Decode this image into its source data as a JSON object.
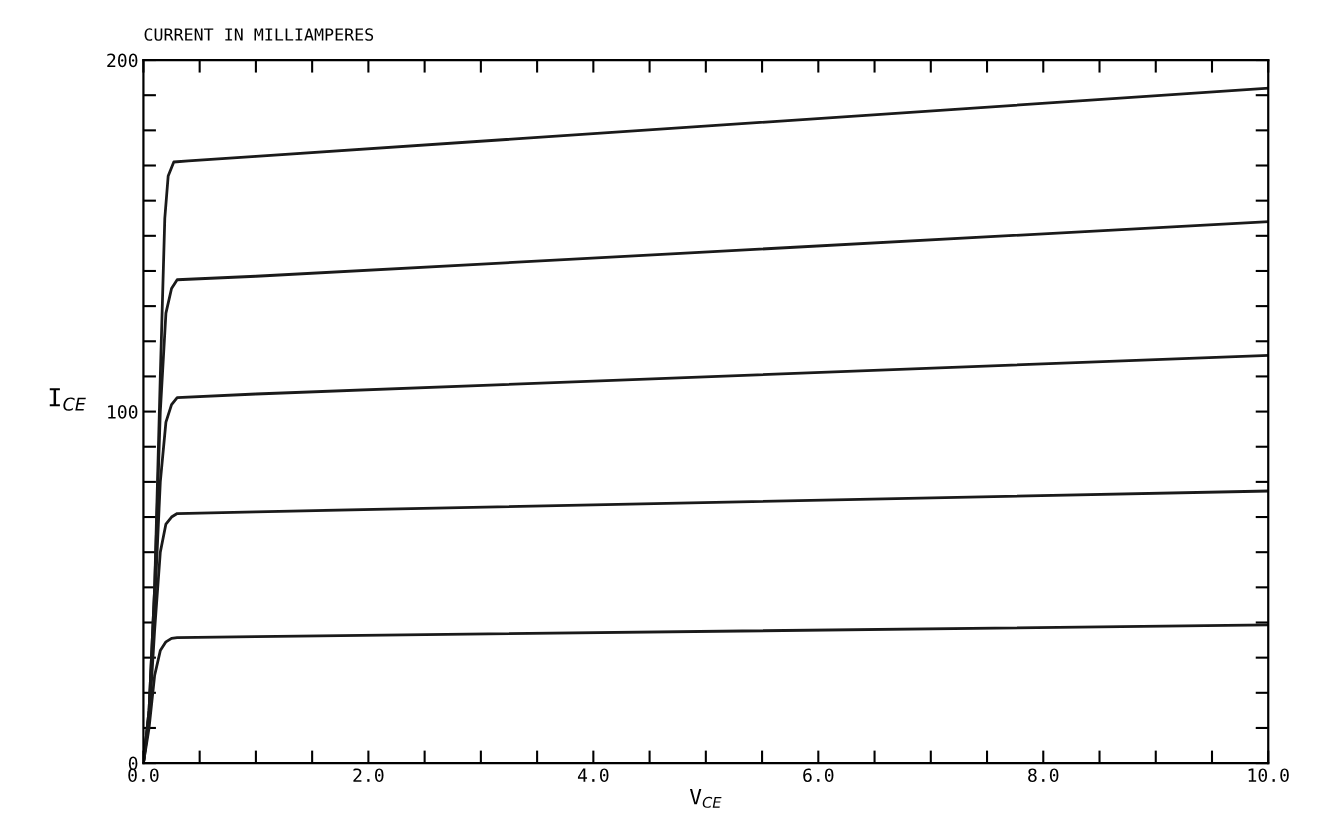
{
  "chart_data": {
    "type": "line",
    "title": "CURRENT IN MILLIAMPERES",
    "xlabel": "V$_{CE}$",
    "ylabel": "I$_{CE}$",
    "xlim": [
      0,
      10
    ],
    "ylim": [
      0,
      200
    ],
    "xticks": [
      {
        "value": 0,
        "label": "0.0"
      },
      {
        "value": 0.5,
        "label": null
      },
      {
        "value": 1,
        "label": null
      },
      {
        "value": 1.5,
        "label": null
      },
      {
        "value": 2,
        "label": "2.0"
      },
      {
        "value": 2.5,
        "label": null
      },
      {
        "value": 3,
        "label": null
      },
      {
        "value": 3.5,
        "label": null
      },
      {
        "value": 4,
        "label": "4.0"
      },
      {
        "value": 4.5,
        "label": null
      },
      {
        "value": 5,
        "label": null
      },
      {
        "value": 5.5,
        "label": null
      },
      {
        "value": 6,
        "label": "6.0"
      },
      {
        "value": 6.5,
        "label": null
      },
      {
        "value": 7,
        "label": null
      },
      {
        "value": 7.5,
        "label": null
      },
      {
        "value": 8,
        "label": "8.0"
      },
      {
        "value": 8.5,
        "label": null
      },
      {
        "value": 9,
        "label": null
      },
      {
        "value": 9.5,
        "label": null
      },
      {
        "value": 10,
        "label": "10.0"
      }
    ],
    "yticks": [
      0,
      {
        "value": 10,
        "label": null
      },
      {
        "value": 20,
        "label": null
      },
      {
        "value": 30,
        "label": null
      },
      {
        "value": 40,
        "label": null
      },
      {
        "value": 50,
        "label": null
      },
      {
        "value": 60,
        "label": null
      },
      {
        "value": 70,
        "label": null
      },
      {
        "value": 80,
        "label": null
      },
      {
        "value": 90,
        "label": null
      },
      100,
      {
        "value": 110,
        "label": null
      },
      {
        "value": 120,
        "label": null
      },
      {
        "value": 130,
        "label": null
      },
      {
        "value": 140,
        "label": null
      },
      {
        "value": 150,
        "label": null
      },
      {
        "value": 160,
        "label": null
      },
      {
        "value": 170,
        "label": null
      },
      {
        "value": 180,
        "label": null
      },
      {
        "value": 190,
        "label": null
      },
      200
    ],
    "marker": "none",
    "line_style": "solid",
    "series": [
      {
        "color": "#1a1a1a",
        "x": [
          0,
          0.05,
          0.1,
          0.15,
          0.19,
          0.22,
          0.27,
          0.4,
          1,
          10
        ],
        "values": [
          0,
          15,
          50,
          110,
          155,
          167,
          171,
          171.3,
          172.6,
          192
        ]
      },
      {
        "color": "#1a1a1a",
        "x": [
          0,
          0.05,
          0.1,
          0.15,
          0.2,
          0.25,
          0.3,
          1,
          10
        ],
        "values": [
          0,
          15,
          50,
          100,
          128,
          135,
          137.5,
          138.5,
          154
        ]
      },
      {
        "color": "#1a1a1a",
        "x": [
          0,
          0.05,
          0.1,
          0.15,
          0.2,
          0.25,
          0.3,
          1,
          10
        ],
        "values": [
          0,
          14,
          45,
          80,
          97,
          102,
          104,
          105,
          116
        ]
      },
      {
        "color": "#1a1a1a",
        "x": [
          0,
          0.05,
          0.1,
          0.15,
          0.2,
          0.25,
          0.3,
          1,
          10
        ],
        "values": [
          0,
          12,
          38,
          60,
          68,
          70,
          71,
          71.5,
          77.4
        ]
      },
      {
        "color": "#1a1a1a",
        "x": [
          0,
          0.05,
          0.1,
          0.15,
          0.2,
          0.25,
          0.3,
          1,
          10
        ],
        "values": [
          0,
          10,
          25,
          32,
          34.5,
          35.5,
          35.7,
          36,
          39.3
        ]
      }
    ]
  }
}
